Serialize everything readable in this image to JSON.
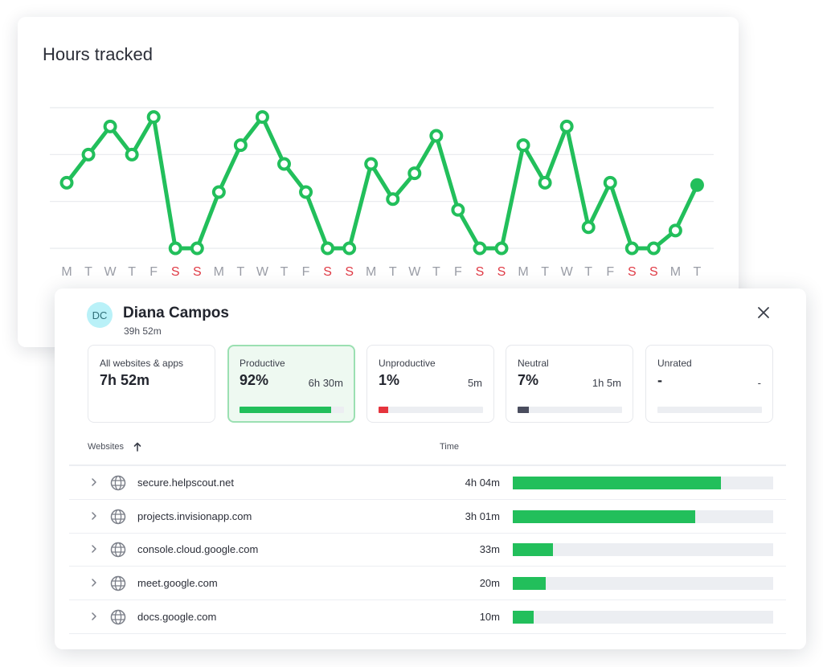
{
  "colors": {
    "line": "#22bf5b",
    "weekday_tick": "#9a9da6",
    "weekend_tick": "#e03b46",
    "productive": "#22bf5b",
    "unproductive": "#e5343d",
    "neutral": "#4a4d5e"
  },
  "chart": {
    "title": "Hours tracked"
  },
  "chart_data": {
    "type": "line",
    "title": "Hours tracked",
    "xlabel": "",
    "ylabel": "",
    "grid": true,
    "ylim": [
      0,
      3
    ],
    "x": [
      "M",
      "T",
      "W",
      "T",
      "F",
      "S",
      "S",
      "M",
      "T",
      "W",
      "T",
      "F",
      "S",
      "S",
      "M",
      "T",
      "W",
      "T",
      "F",
      "S",
      "S",
      "M",
      "T",
      "W",
      "T",
      "F",
      "S",
      "S",
      "M",
      "T"
    ],
    "weekend": [
      false,
      false,
      false,
      false,
      false,
      true,
      true,
      false,
      false,
      false,
      false,
      false,
      true,
      true,
      false,
      false,
      false,
      false,
      false,
      true,
      true,
      false,
      false,
      false,
      false,
      false,
      true,
      true,
      false,
      false
    ],
    "series": [
      {
        "values": [
          1.4,
          2.0,
          2.6,
          2.0,
          2.8,
          0,
          0,
          1.2,
          2.2,
          2.8,
          1.8,
          1.2,
          0,
          0,
          1.8,
          1.05,
          1.6,
          2.4,
          0.82,
          0,
          0,
          2.2,
          1.4,
          2.6,
          0.45,
          1.4,
          0,
          0,
          0.38,
          1.35
        ]
      }
    ]
  },
  "panel": {
    "avatar_initials": "DC",
    "user_name": "Diana Campos",
    "user_total": "39h 52m",
    "close_icon": "close-icon",
    "categories": [
      {
        "label": "All websites & apps",
        "value": "7h 52m",
        "time": "",
        "fill": null,
        "color": ""
      },
      {
        "label": "Productive",
        "value": "92%",
        "time": "6h 30m",
        "fill": 0.88,
        "color": "#22bf5b"
      },
      {
        "label": "Unproductive",
        "value": "1%",
        "time": "5m",
        "fill": 0.09,
        "color": "#e5343d"
      },
      {
        "label": "Neutral",
        "value": "7%",
        "time": "1h 5m",
        "fill": 0.11,
        "color": "#4a4d5e"
      },
      {
        "label": "Unrated",
        "value": "-",
        "time": "-",
        "fill": 0,
        "color": "#eceef2"
      }
    ],
    "table": {
      "col_websites": "Websites",
      "col_time": "Time",
      "sort_icon": "arrow-up-icon",
      "rows": [
        {
          "site": "secure.helpscout.net",
          "time": "4h 04m",
          "fill": 0.8
        },
        {
          "site": "projects.invisionapp.com",
          "time": "3h 01m",
          "fill": 0.7
        },
        {
          "site": "console.cloud.google.com",
          "time": "33m",
          "fill": 0.155
        },
        {
          "site": "meet.google.com",
          "time": "20m",
          "fill": 0.125
        },
        {
          "site": "docs.google.com",
          "time": "10m",
          "fill": 0.08
        }
      ]
    }
  }
}
